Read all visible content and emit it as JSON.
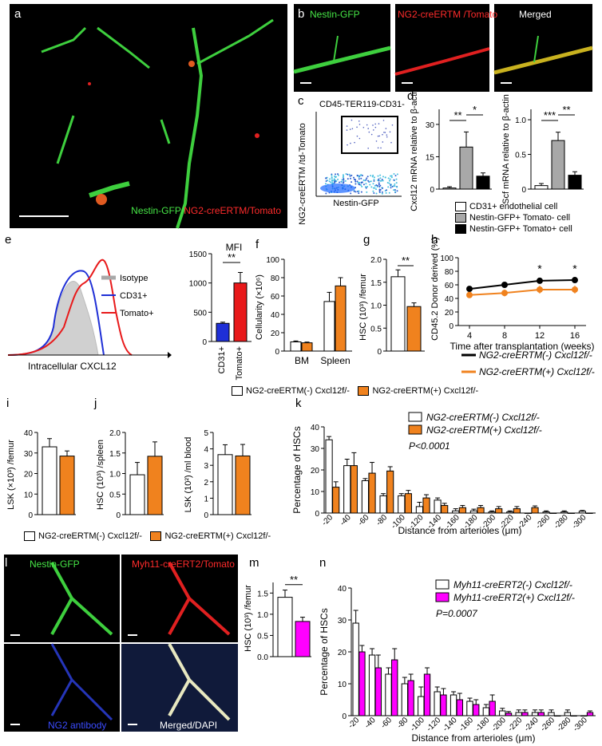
{
  "panel_labels": {
    "a": "a",
    "b": "b",
    "c": "c",
    "d": "d",
    "e": "e",
    "f": "f",
    "g": "g",
    "h": "h",
    "i": "i",
    "j": "j",
    "k": "k",
    "l": "l",
    "m": "m",
    "n": "n"
  },
  "micro": {
    "a_caption_green": "Nestin-GFP/",
    "a_caption_red": "NG2-creERTM/Tomato",
    "b_titles": [
      "Nestin-GFP",
      "NG2-creERTM /Tomato",
      "Merged"
    ],
    "l_titles": [
      "Nestin-GFP",
      "Myh11-creERT2/Tomato",
      "NG2 antibody",
      "Merged/DAPI"
    ]
  },
  "colors": {
    "orange": "#f0821e",
    "magenta": "#ff00ff",
    "blue": "#1f2fd6",
    "red": "#e8191a",
    "grey": "#a8a8a8",
    "black": "#000000",
    "white": "#ffffff"
  },
  "legends": {
    "d": [
      "CD31+ endothelial cell",
      "Nestin-GFP+ Tomato- cell",
      "Nestin-GFP+ Tomato+ cell"
    ],
    "fg": [
      "NG2-creERTM(-) Cxcl12f/-",
      "NG2-creERTM(+) Cxcl12f/-"
    ],
    "h": [
      "NG2-creERTM(-) Cxcl12f/-",
      "NG2-creERTM(+) Cxcl12f/-"
    ],
    "ij": [
      "NG2-creERTM(-) Cxcl12f/-",
      "NG2-creERTM(+) Cxcl12f/-"
    ],
    "k": [
      "NG2-creERTM(-) Cxcl12f/-",
      "NG2-creERTM(+) Cxcl12f/-"
    ],
    "n": [
      "Myh11-creERT2(-) Cxcl12f/-",
      "Myh11-creERT2(+) Cxcl12f/-"
    ]
  },
  "chart_data": [
    {
      "panel": "c",
      "type": "scatter",
      "title": "CD45-TER119-CD31-",
      "xlabel": "Nestin-GFP",
      "ylabel": "NG2-creERTM /td-Tomato"
    },
    {
      "panel": "d-left",
      "type": "bar",
      "categories": [
        "CD31+ endothelial cell",
        "Nestin-GFP+ Tomato- cell",
        "Nestin-GFP+ Tomato+ cell"
      ],
      "values": [
        0.5,
        19.5,
        6
      ],
      "errors": [
        0.6,
        7,
        1.5
      ],
      "ylabel": "Cxcl12 mRNA relative to β-actin",
      "yticks": [
        "0",
        "15",
        "30"
      ],
      "ylim": [
        0,
        37
      ],
      "significance": [
        "**",
        "*"
      ]
    },
    {
      "panel": "d-right",
      "type": "bar",
      "categories": [
        "CD31+ endothelial cell",
        "Nestin-GFP+ Tomato- cell",
        "Nestin-GFP+ Tomato+ cell"
      ],
      "values": [
        0.05,
        0.7,
        0.2
      ],
      "errors": [
        0.03,
        0.12,
        0.05
      ],
      "ylabel": "Scf mRNA relative to β-actin",
      "yticks": [
        "0",
        "0.5",
        "1.0"
      ],
      "ylim": [
        0,
        1.15
      ],
      "significance": [
        "***",
        "**"
      ]
    },
    {
      "panel": "e-hist",
      "type": "area",
      "series": [
        {
          "name": "Isotype"
        },
        {
          "name": "CD31+"
        },
        {
          "name": "Tomato+"
        }
      ],
      "xlabel": "Intracellular CXCL12"
    },
    {
      "panel": "e-mfi",
      "type": "bar",
      "title": "MFI",
      "categories": [
        "CD31+",
        "Tomato+"
      ],
      "values": [
        310,
        1000
      ],
      "errors": [
        20,
        180
      ],
      "yticks": [
        "0",
        "500",
        "1000",
        "1500"
      ],
      "ylim": [
        0,
        1500
      ],
      "significance": [
        "**"
      ]
    },
    {
      "panel": "f",
      "type": "bar",
      "categories": [
        "BM",
        "Spleen"
      ],
      "series": [
        {
          "name": "NG2-creERTM(-) Cxcl12f/-",
          "values": [
            10,
            54
          ],
          "errors": [
            1,
            10
          ]
        },
        {
          "name": "NG2-creERTM(+) Cxcl12f/-",
          "values": [
            9,
            71
          ],
          "errors": [
            0.8,
            9
          ]
        }
      ],
      "ylabel": "Cellularity (×10⁶)",
      "yticks": [
        "0",
        "20",
        "40",
        "60",
        "80",
        "100"
      ],
      "ylim": [
        0,
        100
      ]
    },
    {
      "panel": "g",
      "type": "bar",
      "categories": [
        "NG2-creERTM(-) Cxcl12f/-",
        "NG2-creERTM(+) Cxcl12f/-"
      ],
      "values": [
        1.62,
        0.97
      ],
      "errors": [
        0.15,
        0.08
      ],
      "ylabel": "HSC (10³) /femur",
      "yticks": [
        "0",
        "0.5",
        "1.0",
        "1.5",
        "2.0"
      ],
      "ylim": [
        0,
        2
      ],
      "significance": [
        "**"
      ]
    },
    {
      "panel": "h",
      "type": "line",
      "x": [
        4,
        8,
        12,
        16
      ],
      "series": [
        {
          "name": "NG2-creERTM(-) Cxcl12f/-",
          "values": [
            54,
            60,
            66,
            67
          ],
          "errors": [
            4,
            3,
            3,
            2
          ]
        },
        {
          "name": "NG2-creERTM(+) Cxcl12f/-",
          "values": [
            45,
            48,
            53,
            53
          ],
          "errors": [
            2,
            5,
            6,
            6
          ]
        }
      ],
      "xlabel": "Time after transplantation (weeks)",
      "ylabel": "CD45.2 Donor derived (%)",
      "xticks": [
        "4",
        "8",
        "12",
        "16"
      ],
      "yticks": [
        "0",
        "20",
        "40",
        "60",
        "80",
        "100"
      ],
      "ylim": [
        0,
        100
      ],
      "significance": [
        "*",
        "*"
      ],
      "significance_x": [
        12,
        16
      ]
    },
    {
      "panel": "i",
      "type": "bar",
      "categories": [
        "NG2-creERTM(-) Cxcl12f/-",
        "NG2-creERTM(+) Cxcl12f/-"
      ],
      "values": [
        33,
        28.5
      ],
      "errors": [
        4,
        2.5
      ],
      "ylabel": "LSK (×10³) /femur",
      "yticks": [
        "0",
        "10",
        "20",
        "30",
        "40"
      ],
      "ylim": [
        0,
        40
      ]
    },
    {
      "panel": "j1",
      "type": "bar",
      "categories": [
        "NG2-creERTM(-) Cxcl12f/-",
        "NG2-creERTM(+) Cxcl12f/-"
      ],
      "values": [
        0.97,
        1.42
      ],
      "errors": [
        0.3,
        0.35
      ],
      "ylabel": "HSC (10³) /spleen",
      "yticks": [
        "0",
        "0.5",
        "1.0",
        "1.5",
        "2.0"
      ],
      "ylim": [
        0,
        2
      ]
    },
    {
      "panel": "j2",
      "type": "bar",
      "categories": [
        "NG2-creERTM(-) Cxcl12f/-",
        "NG2-creERTM(+) Cxcl12f/-"
      ],
      "values": [
        3.65,
        3.57
      ],
      "errors": [
        0.6,
        0.7
      ],
      "ylabel": "LSK (10²) /ml blood",
      "yticks": [
        "0",
        "1",
        "2",
        "3",
        "4",
        "5"
      ],
      "ylim": [
        0,
        5
      ]
    },
    {
      "panel": "k",
      "type": "bar",
      "categories": [
        "-20",
        "-40",
        "-60",
        "-80",
        "-100",
        "-120",
        "-140",
        "-160",
        "-180",
        "-200",
        "-220",
        "-240",
        "-260",
        "-280",
        "-300"
      ],
      "series": [
        {
          "name": "NG2-creERTM(-) Cxcl12f/-",
          "values": [
            34,
            22,
            15,
            8,
            8,
            3,
            6,
            1,
            1,
            0.5,
            0.5,
            0,
            0.5,
            0.5,
            0.8
          ],
          "errors": [
            1.5,
            3,
            1,
            1,
            1,
            2,
            1,
            1,
            0.8,
            0.5,
            0.5,
            0,
            0.5,
            0.5,
            0.4
          ]
        },
        {
          "name": "NG2-creERTM(+) Cxcl12f/-",
          "values": [
            12,
            22,
            18.5,
            19.5,
            9,
            7,
            3.5,
            2.5,
            2.5,
            2,
            2,
            2.5,
            0,
            0,
            0
          ],
          "errors": [
            2.5,
            6,
            5,
            2,
            1.5,
            1.5,
            1,
            1,
            1,
            1,
            1,
            0.8,
            0,
            0,
            0
          ]
        }
      ],
      "xlabel": "Distance from arterioles (μm)",
      "ylabel": "Percentage of HSCs",
      "yticks": [
        "0",
        "10",
        "20",
        "30",
        "40"
      ],
      "ylim": [
        0,
        40
      ],
      "annotation": "P<0.0001"
    },
    {
      "panel": "m",
      "type": "bar",
      "categories": [
        "Myh11-creERT2(-) Cxcl12f/-",
        "Myh11-creERT2(+) Cxcl12f/-"
      ],
      "values": [
        1.4,
        0.83
      ],
      "errors": [
        0.17,
        0.1
      ],
      "ylabel": "HSC (10³) /femur",
      "yticks": [
        "0.0",
        "0.5",
        "1.0",
        "1.5"
      ],
      "ylim": [
        0,
        1.75
      ],
      "significance": [
        "**"
      ]
    },
    {
      "panel": "n",
      "type": "bar",
      "categories": [
        "-20",
        "-40",
        "-60",
        "-80",
        "-100",
        "-120",
        "-140",
        "-160",
        "-180",
        "-200",
        "-220",
        "-240",
        "-260",
        "-280",
        "-300"
      ],
      "series": [
        {
          "name": "Myh11-creERT2(-) Cxcl12f/-",
          "values": [
            29,
            19,
            13,
            10,
            6,
            7.5,
            6.5,
            4.5,
            2.5,
            1.5,
            1,
            1,
            1,
            1,
            0
          ],
          "errors": [
            4,
            2,
            2,
            2,
            3,
            1.5,
            1,
            1,
            1,
            0.8,
            0.8,
            0.8,
            0.8,
            0.8,
            0
          ]
        },
        {
          "name": "Myh11-creERT2(+) Cxcl12f/-",
          "values": [
            20,
            15,
            17.5,
            11,
            13,
            6.5,
            5,
            3.5,
            4.5,
            0.8,
            1,
            1,
            0,
            0,
            1
          ],
          "errors": [
            2,
            4,
            3.5,
            2,
            2,
            2,
            2,
            1.5,
            2,
            0.5,
            0.8,
            0.8,
            0,
            0,
            0.5
          ]
        }
      ],
      "xlabel": "Distance from arterioles (μm)",
      "ylabel": "Percentage of HSCs",
      "yticks": [
        "0",
        "10",
        "20",
        "30",
        "40"
      ],
      "ylim": [
        0,
        40
      ],
      "annotation": "P=0.0007"
    }
  ]
}
